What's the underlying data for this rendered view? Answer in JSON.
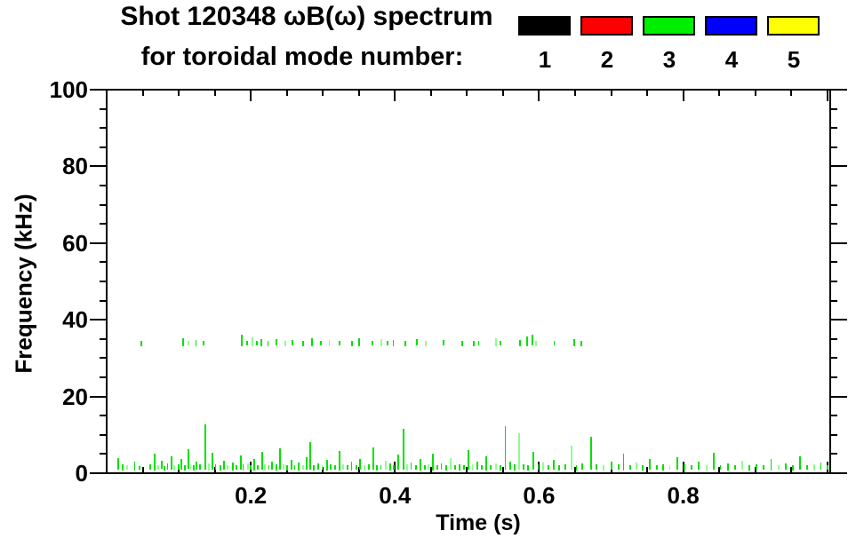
{
  "figure_title": {
    "line1": "Shot 120348 ωB(ω) spectrum",
    "line2": "for toroidal mode number:"
  },
  "legend": {
    "items": [
      {
        "label": "1",
        "color": "#000000"
      },
      {
        "label": "2",
        "color": "#ff0000"
      },
      {
        "label": "3",
        "color": "#00ee00"
      },
      {
        "label": "4",
        "color": "#0000ff"
      },
      {
        "label": "5",
        "color": "#ffff00"
      }
    ]
  },
  "chart_data": {
    "type": "scatter",
    "title": "Shot 120348 ωB(ω) spectrum for toroidal mode number: 1 2 3 4 5",
    "xlabel": "Time (s)",
    "ylabel": "Frequency (kHz)",
    "xlim": [
      0,
      1.004
    ],
    "ylim": [
      0,
      100
    ],
    "x_major_ticks": [
      0.2,
      0.4,
      0.6,
      0.8,
      1.0
    ],
    "x_tick_labels": [
      {
        "value": 0.2,
        "label": "0.2"
      },
      {
        "value": 0.4,
        "label": "0.4"
      },
      {
        "value": 0.6,
        "label": "0.6"
      },
      {
        "value": 0.8,
        "label": "0.8"
      }
    ],
    "x_minor_step": 0.05,
    "y_major_ticks": [
      0,
      20,
      40,
      60,
      80,
      100
    ],
    "y_tick_labels": [
      "0",
      "20",
      "40",
      "60",
      "80",
      "100"
    ],
    "y_minor_step": 5,
    "grid": false,
    "note": "Only toroidal mode n=3 (green) shows visible data: a sparse band near 33-36 kHz from t=0.05-0.66 s and a dense low-frequency band below ~13 kHz across the full time range.",
    "series": [
      {
        "name": "n=3 low-frequency band",
        "mode": 3,
        "color": "#00e000",
        "color_faint": "#8cff8c",
        "marker": "vertical-dash",
        "points": [
          [
            0.016,
            1.0,
            4.0
          ],
          [
            0.022,
            0.8,
            2.2
          ],
          [
            0.028,
            0.9,
            2.0
          ],
          [
            0.04,
            0.8,
            3.0
          ],
          [
            0.046,
            0.9,
            1.8
          ],
          [
            0.06,
            1.0,
            2.4
          ],
          [
            0.066,
            0.8,
            5.0
          ],
          [
            0.071,
            0.9,
            2.0
          ],
          [
            0.076,
            1.1,
            3.2
          ],
          [
            0.08,
            0.8,
            1.9
          ],
          [
            0.085,
            1.0,
            2.6
          ],
          [
            0.09,
            0.9,
            4.4
          ],
          [
            0.094,
            0.8,
            2.1
          ],
          [
            0.1,
            1.0,
            2.2
          ],
          [
            0.104,
            0.9,
            3.6
          ],
          [
            0.109,
            0.8,
            2.0
          ],
          [
            0.113,
            1.2,
            6.2
          ],
          [
            0.117,
            0.9,
            2.4
          ],
          [
            0.121,
            0.8,
            2.0
          ],
          [
            0.125,
            1.0,
            3.1
          ],
          [
            0.13,
            0.9,
            2.2
          ],
          [
            0.137,
            1.0,
            12.8
          ],
          [
            0.142,
            0.8,
            2.6
          ],
          [
            0.147,
            0.9,
            5.4
          ],
          [
            0.152,
            1.0,
            2.3
          ],
          [
            0.158,
            0.8,
            2.0
          ],
          [
            0.163,
            0.9,
            3.3
          ],
          [
            0.168,
            1.0,
            2.1
          ],
          [
            0.175,
            0.8,
            2.8
          ],
          [
            0.18,
            0.9,
            2.0
          ],
          [
            0.186,
            1.0,
            4.6
          ],
          [
            0.19,
            0.8,
            2.2
          ],
          [
            0.196,
            0.9,
            2.5
          ],
          [
            0.2,
            1.0,
            2.0
          ],
          [
            0.205,
            0.8,
            3.8
          ],
          [
            0.21,
            0.9,
            2.1
          ],
          [
            0.216,
            1.0,
            5.6
          ],
          [
            0.22,
            0.8,
            2.3
          ],
          [
            0.226,
            0.9,
            2.0
          ],
          [
            0.23,
            1.0,
            3.0
          ],
          [
            0.236,
            0.8,
            2.4
          ],
          [
            0.24,
            0.9,
            6.5
          ],
          [
            0.245,
            1.0,
            2.2
          ],
          [
            0.25,
            0.8,
            2.0
          ],
          [
            0.256,
            0.9,
            3.5
          ],
          [
            0.261,
            1.0,
            2.1
          ],
          [
            0.267,
            0.8,
            2.7
          ],
          [
            0.272,
            0.9,
            2.0
          ],
          [
            0.278,
            1.0,
            4.2
          ],
          [
            0.283,
            1.0,
            8.2
          ],
          [
            0.288,
            0.8,
            2.1
          ],
          [
            0.294,
            0.9,
            2.6
          ],
          [
            0.3,
            1.0,
            2.0
          ],
          [
            0.306,
            0.8,
            3.4
          ],
          [
            0.311,
            0.9,
            2.2
          ],
          [
            0.317,
            1.0,
            2.0
          ],
          [
            0.323,
            0.8,
            5.8
          ],
          [
            0.328,
            0.9,
            2.3
          ],
          [
            0.334,
            1.0,
            2.0
          ],
          [
            0.34,
            0.8,
            2.9
          ],
          [
            0.346,
            0.9,
            2.1
          ],
          [
            0.352,
            1.0,
            3.7
          ],
          [
            0.358,
            0.8,
            2.0
          ],
          [
            0.364,
            0.9,
            2.4
          ],
          [
            0.37,
            1.0,
            6.8
          ],
          [
            0.375,
            0.8,
            2.1
          ],
          [
            0.381,
            0.9,
            2.0
          ],
          [
            0.387,
            1.0,
            3.2
          ],
          [
            0.393,
            0.8,
            2.5
          ],
          [
            0.399,
            0.9,
            2.0
          ],
          [
            0.405,
            1.0,
            4.8
          ],
          [
            0.412,
            1.0,
            11.5
          ],
          [
            0.417,
            0.8,
            2.2
          ],
          [
            0.423,
            0.9,
            2.7
          ],
          [
            0.429,
            1.0,
            2.0
          ],
          [
            0.435,
            0.8,
            3.6
          ],
          [
            0.441,
            0.9,
            2.1
          ],
          [
            0.447,
            1.0,
            2.3
          ],
          [
            0.453,
            0.8,
            5.2
          ],
          [
            0.459,
            0.9,
            2.0
          ],
          [
            0.465,
            1.0,
            2.6
          ],
          [
            0.471,
            0.8,
            2.1
          ],
          [
            0.477,
            0.9,
            3.9
          ],
          [
            0.483,
            1.0,
            2.0
          ],
          [
            0.49,
            0.8,
            2.4
          ],
          [
            0.496,
            0.9,
            2.1
          ],
          [
            0.502,
            1.0,
            6.0
          ],
          [
            0.508,
            0.8,
            2.2
          ],
          [
            0.514,
            0.9,
            2.9
          ],
          [
            0.52,
            1.0,
            2.0
          ],
          [
            0.527,
            0.8,
            4.4
          ],
          [
            0.533,
            0.9,
            2.1
          ],
          [
            0.54,
            1.0,
            2.5
          ],
          [
            0.547,
            0.8,
            2.0
          ],
          [
            0.554,
            1.0,
            12.2
          ],
          [
            0.56,
            0.9,
            3.0
          ],
          [
            0.566,
            0.8,
            2.2
          ],
          [
            0.572,
            1.0,
            10.4
          ],
          [
            0.578,
            0.9,
            2.4
          ],
          [
            0.585,
            0.8,
            2.0
          ],
          [
            0.592,
            1.0,
            5.5
          ],
          [
            0.599,
            0.9,
            2.2
          ],
          [
            0.606,
            0.8,
            2.8
          ],
          [
            0.613,
            1.0,
            2.0
          ],
          [
            0.62,
            0.9,
            3.4
          ],
          [
            0.628,
            0.8,
            2.1
          ],
          [
            0.636,
            1.0,
            2.3
          ],
          [
            0.645,
            0.9,
            7.2
          ],
          [
            0.652,
            0.8,
            2.0
          ],
          [
            0.66,
            1.0,
            2.6
          ],
          [
            0.672,
            1.0,
            9.6
          ],
          [
            0.68,
            0.9,
            2.2
          ],
          [
            0.69,
            0.8,
            2.0
          ],
          [
            0.7,
            1.0,
            3.1
          ],
          [
            0.71,
            0.9,
            2.3
          ],
          [
            0.718,
            0.8,
            5.0
          ],
          [
            0.726,
            1.0,
            2.1
          ],
          [
            0.735,
            0.9,
            2.7
          ],
          [
            0.744,
            0.8,
            2.0
          ],
          [
            0.754,
            1.0,
            3.6
          ],
          [
            0.763,
            0.9,
            2.1
          ],
          [
            0.772,
            0.8,
            2.4
          ],
          [
            0.782,
            1.0,
            2.0
          ],
          [
            0.792,
            0.9,
            4.1
          ],
          [
            0.802,
            0.8,
            2.2
          ],
          [
            0.812,
            1.0,
            2.0
          ],
          [
            0.822,
            0.9,
            2.9
          ],
          [
            0.832,
            0.8,
            2.1
          ],
          [
            0.842,
            1.0,
            5.3
          ],
          [
            0.852,
            0.9,
            2.0
          ],
          [
            0.862,
            0.8,
            2.5
          ],
          [
            0.872,
            1.0,
            2.1
          ],
          [
            0.882,
            0.9,
            3.3
          ],
          [
            0.892,
            0.8,
            2.0
          ],
          [
            0.902,
            1.0,
            2.4
          ],
          [
            0.912,
            0.9,
            2.1
          ],
          [
            0.922,
            0.8,
            3.8
          ],
          [
            0.932,
            1.0,
            2.0
          ],
          [
            0.942,
            0.9,
            2.6
          ],
          [
            0.952,
            0.8,
            2.1
          ],
          [
            0.962,
            1.0,
            4.5
          ],
          [
            0.972,
            0.9,
            2.0
          ],
          [
            0.982,
            0.8,
            2.3
          ],
          [
            0.992,
            1.0,
            2.8
          ],
          [
            1.0,
            0.9,
            2.0
          ]
        ]
      },
      {
        "name": "n=3 ~34 kHz band",
        "mode": 3,
        "color": "#00e000",
        "color_faint": "#8cff8c",
        "marker": "vertical-dash",
        "points": [
          [
            0.048,
            33.2,
            34.6
          ],
          [
            0.106,
            33.0,
            35.2
          ],
          [
            0.114,
            33.4,
            34.4
          ],
          [
            0.125,
            33.1,
            34.8
          ],
          [
            0.135,
            33.3,
            34.5
          ],
          [
            0.188,
            33.0,
            36.0
          ],
          [
            0.195,
            33.4,
            34.6
          ],
          [
            0.202,
            33.1,
            35.4
          ],
          [
            0.209,
            33.3,
            34.5
          ],
          [
            0.215,
            33.0,
            34.9
          ],
          [
            0.225,
            33.2,
            34.4
          ],
          [
            0.236,
            33.4,
            35.0
          ],
          [
            0.248,
            33.1,
            34.5
          ],
          [
            0.258,
            33.3,
            34.7
          ],
          [
            0.272,
            33.0,
            34.4
          ],
          [
            0.285,
            33.2,
            35.1
          ],
          [
            0.297,
            33.4,
            34.5
          ],
          [
            0.31,
            33.1,
            34.8
          ],
          [
            0.323,
            33.3,
            34.4
          ],
          [
            0.341,
            33.0,
            34.6
          ],
          [
            0.35,
            33.2,
            35.3
          ],
          [
            0.369,
            33.4,
            34.5
          ],
          [
            0.381,
            33.1,
            34.9
          ],
          [
            0.39,
            33.3,
            34.4
          ],
          [
            0.398,
            33.0,
            34.7
          ],
          [
            0.415,
            33.2,
            34.5
          ],
          [
            0.431,
            33.4,
            35.0
          ],
          [
            0.443,
            33.1,
            34.4
          ],
          [
            0.468,
            33.3,
            34.8
          ],
          [
            0.493,
            33.0,
            34.5
          ],
          [
            0.509,
            33.2,
            34.6
          ],
          [
            0.517,
            33.4,
            34.4
          ],
          [
            0.54,
            33.1,
            35.2
          ],
          [
            0.546,
            33.3,
            34.5
          ],
          [
            0.573,
            33.0,
            34.8
          ],
          [
            0.583,
            33.2,
            35.6
          ],
          [
            0.591,
            33.4,
            36.2
          ],
          [
            0.596,
            33.1,
            34.5
          ],
          [
            0.622,
            33.3,
            34.6
          ],
          [
            0.649,
            33.0,
            34.9
          ],
          [
            0.659,
            33.2,
            34.4
          ]
        ]
      }
    ]
  }
}
